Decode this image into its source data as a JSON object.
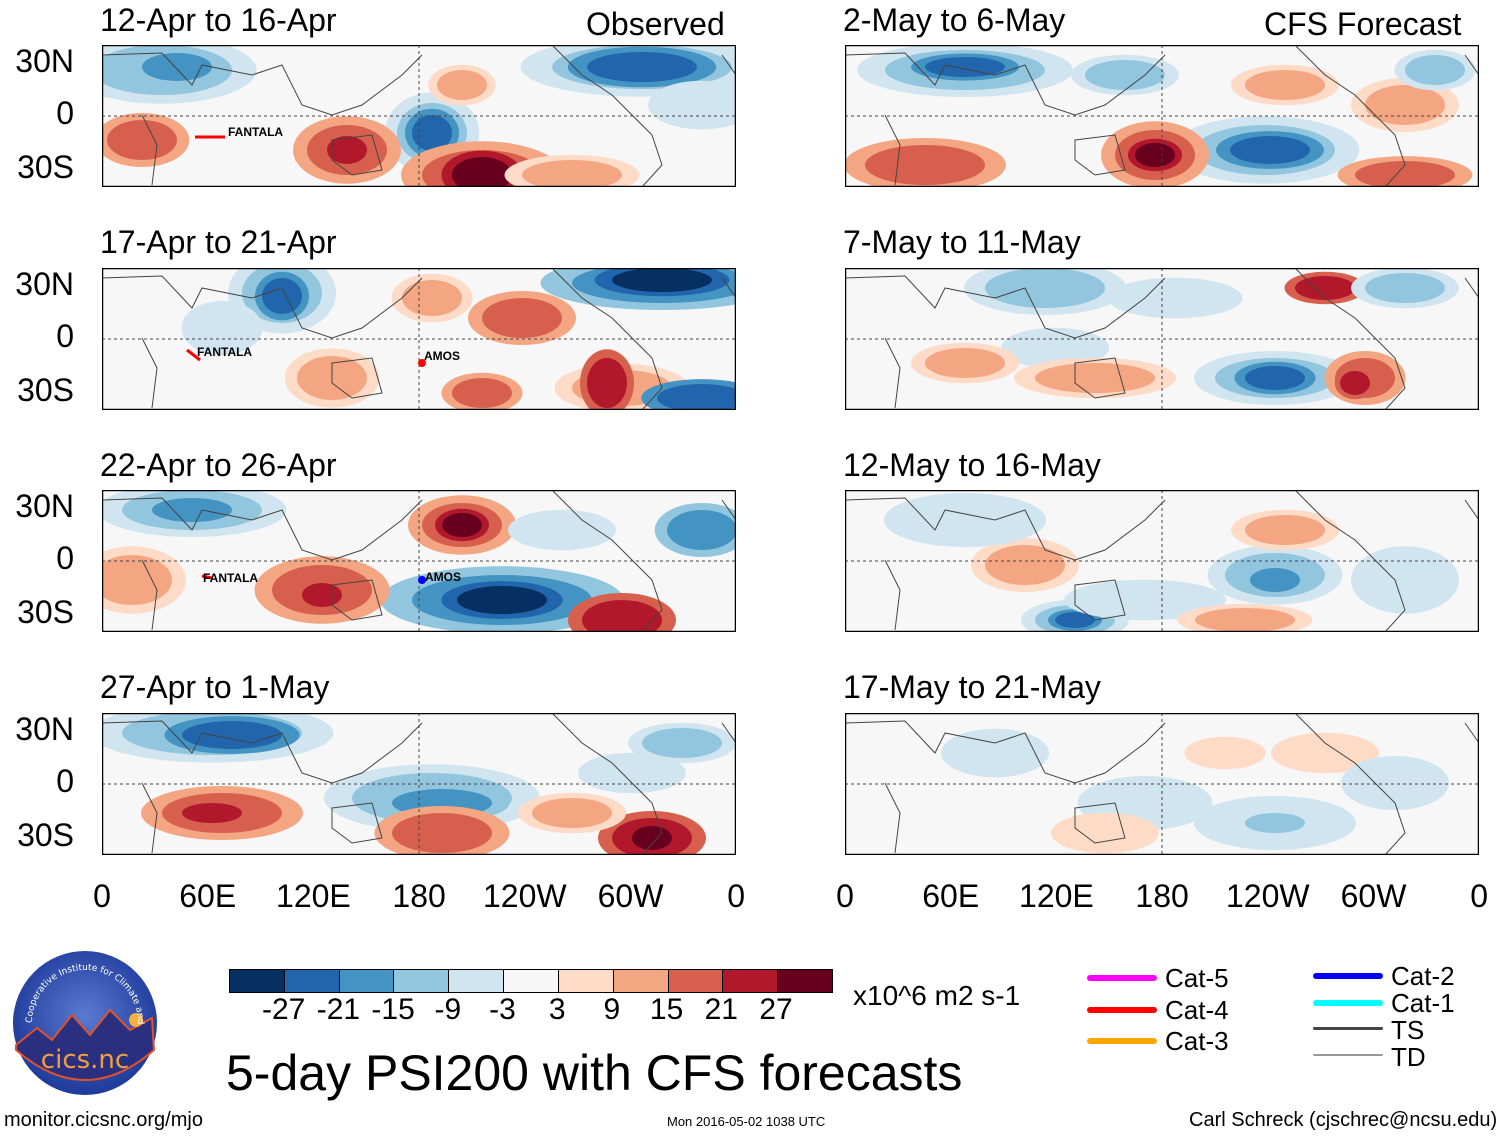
{
  "title": "5-day PSI200 with CFS forecasts",
  "columns": {
    "observed_label": "Observed",
    "forecast_label": "CFS Forecast"
  },
  "panels": {
    "observed": [
      "12-Apr to 16-Apr",
      "17-Apr to 21-Apr",
      "22-Apr to 26-Apr",
      "27-Apr to 1-May"
    ],
    "forecast": [
      "2-May to 6-May",
      "7-May to 11-May",
      "12-May to 16-May",
      "17-May to 21-May"
    ]
  },
  "lat_labels": [
    "30N",
    "0",
    "30S"
  ],
  "lon_labels": [
    "0",
    "60E",
    "120E",
    "180",
    "120W",
    "60W",
    "0"
  ],
  "storms": {
    "fantala": "FANTALA",
    "amos": "AMOS"
  },
  "colorbar": {
    "colors": [
      "#053061",
      "#2166ac",
      "#4393c3",
      "#92c5de",
      "#d1e5f0",
      "#f7f7f7",
      "#fddbc7",
      "#f4a582",
      "#d6604d",
      "#b2182b",
      "#67001f"
    ],
    "ticks": [
      "-27",
      "-21",
      "-15",
      "-9",
      "-3",
      "3",
      "9",
      "15",
      "21",
      "27"
    ],
    "units": "x10^6 m2 s-1"
  },
  "legend": [
    {
      "label": "Cat-5",
      "color": "#ff00ff"
    },
    {
      "label": "Cat-4",
      "color": "#ff0000"
    },
    {
      "label": "Cat-3",
      "color": "#ffa500"
    },
    {
      "label": "Cat-2",
      "color": "#0000ff"
    },
    {
      "label": "Cat-1",
      "color": "#00ffff"
    },
    {
      "label": "TS",
      "color": "#444444"
    },
    {
      "label": "TD",
      "color": "#999999"
    }
  ],
  "logo": {
    "text": "cics.nc",
    "ring_text": "Cooperative Institute for Climate and Satellites"
  },
  "footer": {
    "url": "monitor.cicsnc.org/mjo",
    "timestamp": "Mon 2016-05-02 1038 UTC",
    "author": "Carl Schreck (cjschrec@ncsu.edu)"
  }
}
